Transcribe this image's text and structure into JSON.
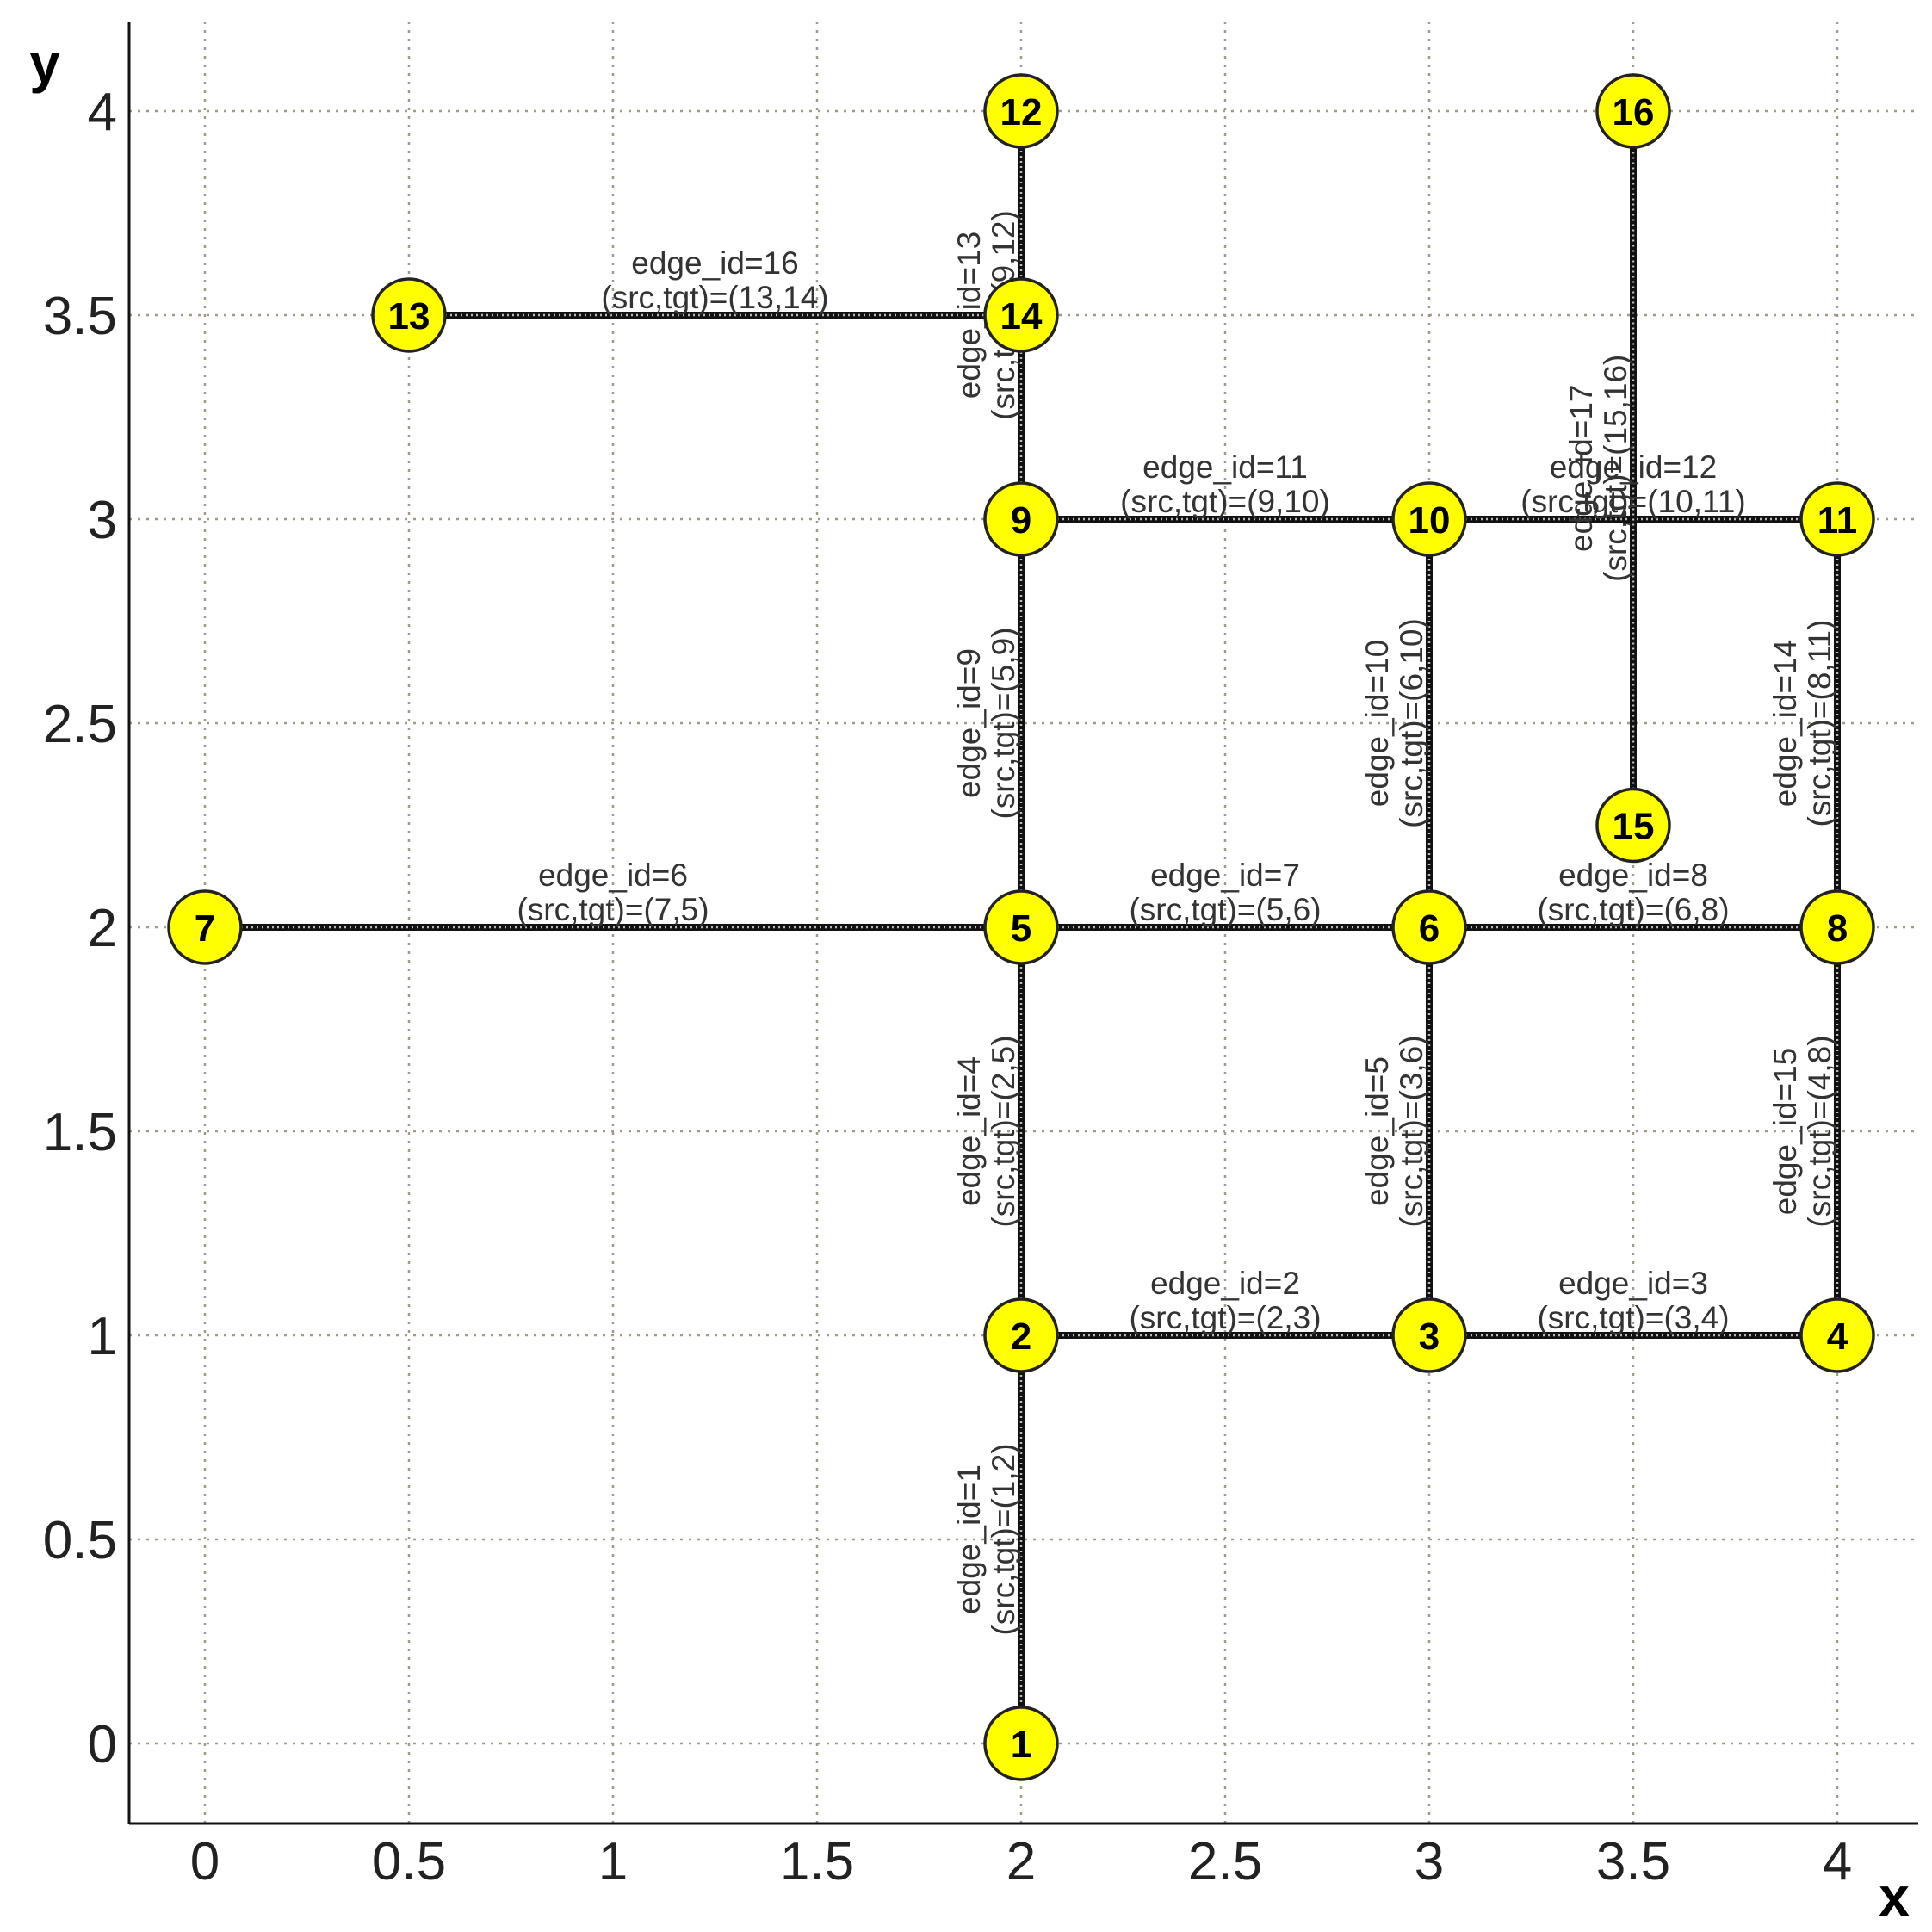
{
  "chart_data": {
    "type": "graph",
    "xlabel": "x",
    "ylabel": "y",
    "xlim": [
      -0.18,
      4.18
    ],
    "ylim": [
      -0.2,
      4.2
    ],
    "xticks": [
      0,
      0.5,
      1,
      1.5,
      2,
      2.5,
      3,
      3.5,
      4
    ],
    "yticks": [
      0,
      0.5,
      1,
      1.5,
      2,
      2.5,
      3,
      3.5,
      4
    ],
    "grid": true,
    "nodes": [
      {
        "id": "1",
        "x": 2,
        "y": 0
      },
      {
        "id": "2",
        "x": 2,
        "y": 1
      },
      {
        "id": "3",
        "x": 3,
        "y": 1
      },
      {
        "id": "4",
        "x": 4,
        "y": 1
      },
      {
        "id": "5",
        "x": 2,
        "y": 2
      },
      {
        "id": "6",
        "x": 3,
        "y": 2
      },
      {
        "id": "7",
        "x": 0,
        "y": 2
      },
      {
        "id": "8",
        "x": 4,
        "y": 2
      },
      {
        "id": "9",
        "x": 2,
        "y": 3
      },
      {
        "id": "10",
        "x": 3,
        "y": 3
      },
      {
        "id": "11",
        "x": 4,
        "y": 3
      },
      {
        "id": "12",
        "x": 2,
        "y": 4
      },
      {
        "id": "13",
        "x": 0.5,
        "y": 3.5
      },
      {
        "id": "14",
        "x": 2,
        "y": 3.5
      },
      {
        "id": "15",
        "x": 3.5,
        "y": 2.25
      },
      {
        "id": "16",
        "x": 3.5,
        "y": 4
      }
    ],
    "edges": [
      {
        "source": "1",
        "target": "2",
        "label1": "edge_id=1",
        "label2": "(src,tgt)=(1,2)"
      },
      {
        "source": "2",
        "target": "3",
        "label1": "edge_id=2",
        "label2": "(src,tgt)=(2,3)"
      },
      {
        "source": "3",
        "target": "4",
        "label1": "edge_id=3",
        "label2": "(src,tgt)=(3,4)"
      },
      {
        "source": "2",
        "target": "5",
        "label1": "edge_id=4",
        "label2": "(src,tgt)=(2,5)"
      },
      {
        "source": "3",
        "target": "6",
        "label1": "edge_id=5",
        "label2": "(src,tgt)=(3,6)"
      },
      {
        "source": "7",
        "target": "5",
        "label1": "edge_id=6",
        "label2": "(src,tgt)=(7,5)"
      },
      {
        "source": "5",
        "target": "6",
        "label1": "edge_id=7",
        "label2": "(src,tgt)=(5,6)"
      },
      {
        "source": "6",
        "target": "8",
        "label1": "edge_id=8",
        "label2": "(src,tgt)=(6,8)"
      },
      {
        "source": "5",
        "target": "9",
        "label1": "edge_id=9",
        "label2": "(src,tgt)=(5,9)"
      },
      {
        "source": "6",
        "target": "10",
        "label1": "edge_id=10",
        "label2": "(src,tgt)=(6,10)"
      },
      {
        "source": "9",
        "target": "10",
        "label1": "edge_id=11",
        "label2": "(src,tgt)=(9,10)"
      },
      {
        "source": "10",
        "target": "11",
        "label1": "edge_id=12",
        "label2": "(src,tgt)=(10,11)"
      },
      {
        "source": "9",
        "target": "12",
        "label1": "edge_id=13",
        "label2": "(src,tgt)=(9,12)"
      },
      {
        "source": "8",
        "target": "11",
        "label1": "edge_id=14",
        "label2": "(src,tgt)=(8,11)"
      },
      {
        "source": "4",
        "target": "8",
        "label1": "edge_id=15",
        "label2": "(src,tgt)=(4,8)"
      },
      {
        "source": "13",
        "target": "14",
        "label1": "edge_id=16",
        "label2": "(src,tgt)=(13,14)"
      },
      {
        "source": "15",
        "target": "16",
        "label1": "edge_id=17",
        "label2": "(src,tgt)=(15,16)"
      }
    ],
    "colors": {
      "node_fill": "#ffff00",
      "node_stroke": "#222222",
      "edge_stroke": "#111111",
      "edge_inner": "#bbbbbb",
      "grid": "#a09a88",
      "axis": "#111111"
    }
  }
}
